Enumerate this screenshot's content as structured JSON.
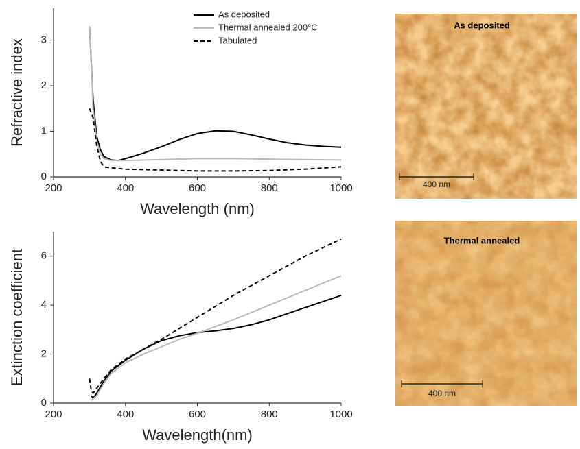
{
  "chart_data": [
    {
      "type": "line",
      "ylabel": "Refractive index",
      "xlabel": "Wavelength (nm)",
      "xlim": [
        200,
        1000
      ],
      "xticks": [
        200,
        400,
        600,
        800,
        1000
      ],
      "ylim": [
        0,
        3.7
      ],
      "yticks": [
        0,
        1,
        2,
        3
      ],
      "legend": "top-right",
      "series": [
        {
          "name": "As deposited",
          "color": "#000000",
          "dash": "solid",
          "x": [
            300,
            305,
            310,
            320,
            330,
            340,
            360,
            380,
            400,
            450,
            500,
            550,
            600,
            650,
            700,
            750,
            800,
            850,
            900,
            950,
            1000
          ],
          "values": [
            3.3,
            2.5,
            1.7,
            0.9,
            0.6,
            0.45,
            0.37,
            0.36,
            0.4,
            0.52,
            0.66,
            0.82,
            0.95,
            1.01,
            1.0,
            0.92,
            0.83,
            0.75,
            0.7,
            0.67,
            0.65
          ]
        },
        {
          "name": "Thermal annealed 200°C",
          "color": "#bbbbbb",
          "dash": "solid",
          "x": [
            300,
            305,
            310,
            320,
            330,
            340,
            360,
            400,
            500,
            600,
            700,
            800,
            900,
            1000
          ],
          "values": [
            3.3,
            2.5,
            1.5,
            0.8,
            0.5,
            0.4,
            0.36,
            0.36,
            0.38,
            0.4,
            0.4,
            0.39,
            0.38,
            0.37
          ]
        },
        {
          "name": "Tabulated",
          "color": "#000000",
          "dash": "dashed",
          "x": [
            300,
            310,
            320,
            330,
            340,
            360,
            400,
            500,
            600,
            700,
            800,
            900,
            1000
          ],
          "values": [
            1.5,
            1.3,
            0.7,
            0.35,
            0.22,
            0.2,
            0.17,
            0.15,
            0.13,
            0.13,
            0.14,
            0.17,
            0.22
          ]
        }
      ]
    },
    {
      "type": "line",
      "ylabel": "Extinction coefficient",
      "xlabel": "Wavelength(nm)",
      "xlim": [
        200,
        1000
      ],
      "xticks": [
        200,
        400,
        600,
        800,
        1000
      ],
      "ylim": [
        0,
        7
      ],
      "yticks": [
        0,
        2,
        4,
        6
      ],
      "series": [
        {
          "color": "#000000",
          "dash": "solid",
          "x": [
            305,
            310,
            320,
            340,
            360,
            400,
            450,
            500,
            550,
            600,
            650,
            700,
            750,
            800,
            850,
            900,
            950,
            1000
          ],
          "values": [
            0.3,
            0.2,
            0.4,
            0.9,
            1.3,
            1.75,
            2.2,
            2.55,
            2.75,
            2.88,
            2.95,
            3.05,
            3.2,
            3.4,
            3.65,
            3.9,
            4.15,
            4.4
          ]
        },
        {
          "color": "#bbbbbb",
          "dash": "solid",
          "x": [
            305,
            320,
            340,
            360,
            400,
            450,
            500,
            550,
            600,
            700,
            800,
            900,
            1000
          ],
          "values": [
            0.1,
            0.3,
            0.8,
            1.2,
            1.65,
            2.0,
            2.3,
            2.6,
            2.85,
            3.4,
            4.0,
            4.6,
            5.2
          ]
        },
        {
          "color": "#000000",
          "dash": "dashed",
          "x": [
            300,
            305,
            310,
            320,
            340,
            360,
            400,
            500,
            600,
            700,
            800,
            900,
            1000
          ],
          "values": [
            1.0,
            0.5,
            0.4,
            0.6,
            1.0,
            1.35,
            1.8,
            2.6,
            3.5,
            4.4,
            5.2,
            6.0,
            6.7
          ]
        }
      ]
    }
  ],
  "images": [
    {
      "label": "As deposited",
      "scale_bar": "400 nm"
    },
    {
      "label": "Thermal annealed",
      "scale_bar": "400 nm"
    }
  ]
}
